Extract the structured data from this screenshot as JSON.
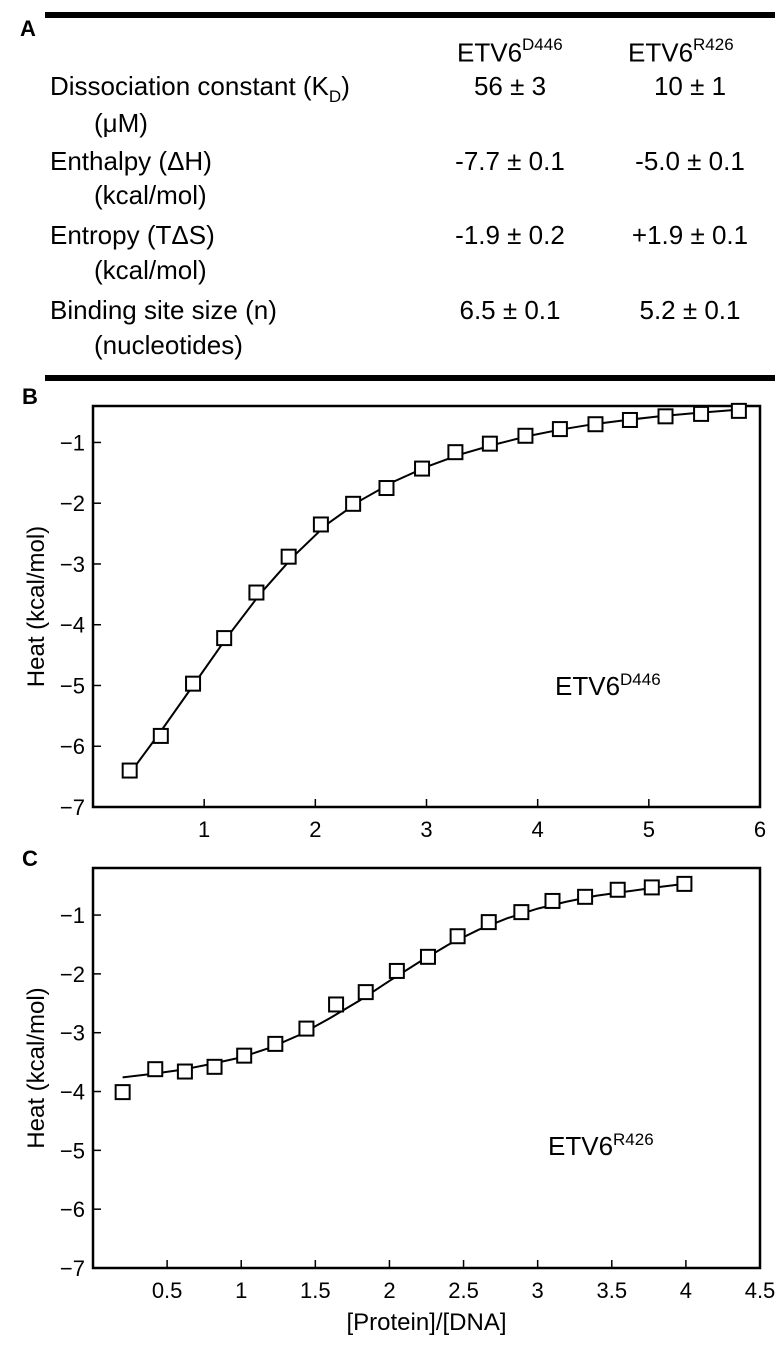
{
  "panels": {
    "a": "A",
    "b": "B",
    "c": "C"
  },
  "table": {
    "columns": [
      {
        "base": "ETV6",
        "sup": "D446"
      },
      {
        "base": "ETV6",
        "sup": "R426"
      }
    ],
    "rows": [
      {
        "label": "Dissociation constant (K",
        "label_sub": "D",
        "label_end": ")",
        "unit": "(μM)",
        "values": [
          "56 ± 3",
          "10 ± 1"
        ]
      },
      {
        "label": "Enthalpy (ΔH)",
        "unit": "(kcal/mol)",
        "values": [
          "-7.7 ± 0.1",
          "-5.0 ± 0.1"
        ]
      },
      {
        "label": "Entropy (TΔS)",
        "unit": "(kcal/mol)",
        "values": [
          "-1.9 ± 0.2",
          "+1.9 ± 0.1"
        ]
      },
      {
        "label": "Binding site size (n)",
        "unit": "(nucleotides)",
        "values": [
          "6.5 ± 0.1",
          "5.2 ± 0.1"
        ]
      }
    ]
  },
  "chart_data": [
    {
      "type": "scatter",
      "panel": "B",
      "annotation": {
        "base": "ETV6",
        "sup": "D446"
      },
      "ylabel": "Heat (kcal/mol)",
      "xlabel": "",
      "xlim": [
        0,
        6
      ],
      "ylim": [
        -7,
        -0.4
      ],
      "xticks": [
        1,
        2,
        3,
        4,
        5,
        6
      ],
      "yticks": [
        -1,
        -2,
        -3,
        -4,
        -5,
        -6,
        -7
      ],
      "grid": false,
      "points": {
        "x": [
          0.33,
          0.61,
          0.9,
          1.18,
          1.47,
          1.76,
          2.05,
          2.34,
          2.64,
          2.96,
          3.26,
          3.57,
          3.89,
          4.2,
          4.52,
          4.83,
          5.15,
          5.47,
          5.81
        ],
        "y": [
          -6.4,
          -5.83,
          -4.97,
          -4.22,
          -3.47,
          -2.88,
          -2.35,
          -2.01,
          -1.75,
          -1.43,
          -1.16,
          -1.02,
          -0.89,
          -0.78,
          -0.7,
          -0.63,
          -0.57,
          -0.53,
          -0.48
        ]
      },
      "fit": {
        "x": [
          0.33,
          0.6,
          0.9,
          1.2,
          1.5,
          1.8,
          2.1,
          2.4,
          2.7,
          3.0,
          3.3,
          3.6,
          3.9,
          4.2,
          4.5,
          4.8,
          5.1,
          5.4,
          5.81
        ],
        "y": [
          -6.45,
          -5.78,
          -5.0,
          -4.22,
          -3.5,
          -2.88,
          -2.35,
          -1.96,
          -1.65,
          -1.4,
          -1.2,
          -1.04,
          -0.9,
          -0.79,
          -0.7,
          -0.63,
          -0.57,
          -0.52,
          -0.46
        ]
      }
    },
    {
      "type": "scatter",
      "panel": "C",
      "annotation": {
        "base": "ETV6",
        "sup": "R426"
      },
      "ylabel": "Heat (kcal/mol)",
      "xlabel": "[Protein]/[DNA]",
      "xlim": [
        0,
        4.5
      ],
      "ylim": [
        -7,
        -0.2
      ],
      "xticks": [
        0.5,
        1,
        1.5,
        2,
        2.5,
        3,
        3.5,
        4,
        4.5
      ],
      "yticks": [
        -1,
        -2,
        -3,
        -4,
        -5,
        -6,
        -7
      ],
      "grid": false,
      "points": {
        "x": [
          0.2,
          0.42,
          0.62,
          0.82,
          1.02,
          1.23,
          1.44,
          1.64,
          1.84,
          2.05,
          2.26,
          2.46,
          2.67,
          2.89,
          3.1,
          3.32,
          3.54,
          3.77,
          3.99
        ],
        "y": [
          -4.01,
          -3.62,
          -3.66,
          -3.58,
          -3.39,
          -3.19,
          -2.93,
          -2.52,
          -2.31,
          -1.95,
          -1.71,
          -1.36,
          -1.12,
          -0.95,
          -0.76,
          -0.69,
          -0.57,
          -0.53,
          -0.47
        ]
      },
      "fit": {
        "x": [
          0.2,
          0.4,
          0.6,
          0.8,
          1.0,
          1.2,
          1.4,
          1.6,
          1.8,
          2.0,
          2.2,
          2.4,
          2.6,
          2.8,
          3.0,
          3.2,
          3.4,
          3.6,
          3.8,
          3.99
        ],
        "y": [
          -3.76,
          -3.7,
          -3.63,
          -3.53,
          -3.42,
          -3.25,
          -3.03,
          -2.75,
          -2.45,
          -2.12,
          -1.8,
          -1.5,
          -1.25,
          -1.05,
          -0.89,
          -0.77,
          -0.67,
          -0.6,
          -0.53,
          -0.47
        ]
      }
    }
  ]
}
